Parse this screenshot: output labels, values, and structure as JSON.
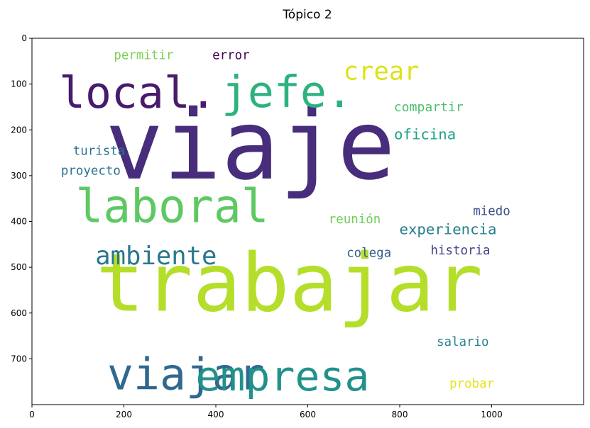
{
  "chart_data": {
    "type": "wordcloud",
    "title": "Tópico 2",
    "xlim": [
      0,
      1200
    ],
    "ylim": [
      800,
      0
    ],
    "xticks": [
      "0",
      "200",
      "400",
      "600",
      "800",
      "1000"
    ],
    "yticks": [
      "0",
      "100",
      "200",
      "300",
      "400",
      "500",
      "600",
      "700"
    ],
    "words": [
      {
        "text": "viaje",
        "x": 475,
        "y": 235,
        "size": 210,
        "color": "#472d7b"
      },
      {
        "text": "trabajar",
        "x": 560,
        "y": 535,
        "size": 175,
        "color": "#b5de2b"
      },
      {
        "text": "local.",
        "x": 230,
        "y": 120,
        "size": 95,
        "color": "#481b6d"
      },
      {
        "text": "jefe.",
        "x": 555,
        "y": 118,
        "size": 95,
        "color": "#2db27d"
      },
      {
        "text": "laboral",
        "x": 305,
        "y": 368,
        "size": 100,
        "color": "#5ec962"
      },
      {
        "text": "viajar",
        "x": 335,
        "y": 735,
        "size": 95,
        "color": "#31688e"
      },
      {
        "text": "empresa",
        "x": 545,
        "y": 738,
        "size": 90,
        "color": "#21918c"
      },
      {
        "text": "ambiente",
        "x": 270,
        "y": 476,
        "size": 55,
        "color": "#2a788e"
      },
      {
        "text": "crear",
        "x": 760,
        "y": 73,
        "size": 55,
        "color": "#dde318"
      },
      {
        "text": "compartir",
        "x": 863,
        "y": 151,
        "size": 28,
        "color": "#4ac16d"
      },
      {
        "text": "oficina",
        "x": 855,
        "y": 210,
        "size": 32,
        "color": "#1fa188"
      },
      {
        "text": "permitir",
        "x": 243,
        "y": 38,
        "size": 27,
        "color": "#7ad151"
      },
      {
        "text": "error",
        "x": 433,
        "y": 38,
        "size": 27,
        "color": "#440154"
      },
      {
        "text": "turista",
        "x": 146,
        "y": 247,
        "size": 27,
        "color": "#2c728e"
      },
      {
        "text": "proyecto",
        "x": 128,
        "y": 290,
        "size": 27,
        "color": "#2c728e"
      },
      {
        "text": "reunión",
        "x": 702,
        "y": 396,
        "size": 27,
        "color": "#6ece58"
      },
      {
        "text": "miedo",
        "x": 1000,
        "y": 378,
        "size": 27,
        "color": "#3b528b"
      },
      {
        "text": "experiencia",
        "x": 905,
        "y": 417,
        "size": 32,
        "color": "#277f8e"
      },
      {
        "text": "historia",
        "x": 932,
        "y": 464,
        "size": 27,
        "color": "#414487"
      },
      {
        "text": "colega",
        "x": 733,
        "y": 470,
        "size": 27,
        "color": "#355f8d"
      },
      {
        "text": "salario",
        "x": 937,
        "y": 664,
        "size": 27,
        "color": "#26828e"
      },
      {
        "text": "probar",
        "x": 957,
        "y": 755,
        "size": 27,
        "color": "#e5e419"
      }
    ]
  }
}
